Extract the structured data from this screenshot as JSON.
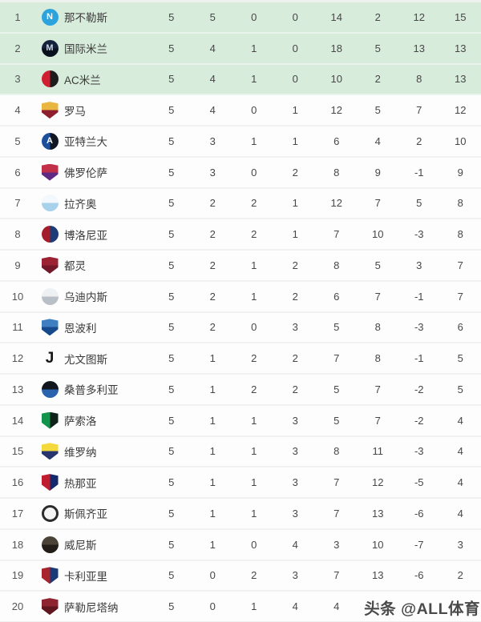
{
  "colors": {
    "cl_zone_bg": "#d8ecdc",
    "row_bg": "#fdfdfd",
    "watermark_text": "#4a4a4a"
  },
  "watermark": {
    "label": "头条 @ALL体育"
  },
  "table": {
    "rows": [
      {
        "rank": "1",
        "team": "那不勒斯",
        "zone": "cl",
        "played": "5",
        "won": "5",
        "drawn": "0",
        "lost": "0",
        "gf": "14",
        "ga": "2",
        "gd": "12",
        "pts": "15",
        "badge": {
          "shape": "circle",
          "split": "solid",
          "colors": [
            "#2ca3dc",
            "#1d71ad"
          ],
          "letter": "N",
          "letterColor": "#ffffff"
        }
      },
      {
        "rank": "2",
        "team": "国际米兰",
        "zone": "cl",
        "played": "5",
        "won": "4",
        "drawn": "1",
        "lost": "0",
        "gf": "18",
        "ga": "5",
        "gd": "13",
        "pts": "13",
        "badge": {
          "shape": "circle",
          "split": "h",
          "colors": [
            "#16223c",
            "#0b101d"
          ],
          "letter": "M",
          "letterColor": "#c9d4e6"
        }
      },
      {
        "rank": "3",
        "team": "AC米兰",
        "zone": "cl",
        "played": "5",
        "won": "4",
        "drawn": "1",
        "lost": "0",
        "gf": "10",
        "ga": "2",
        "gd": "8",
        "pts": "13",
        "badge": {
          "shape": "circle",
          "split": "v",
          "colors": [
            "#cf1f31",
            "#1d1d1d"
          ],
          "letter": "",
          "letterColor": ""
        }
      },
      {
        "rank": "4",
        "team": "罗马",
        "zone": "",
        "played": "5",
        "won": "4",
        "drawn": "0",
        "lost": "1",
        "gf": "12",
        "ga": "5",
        "gd": "7",
        "pts": "12",
        "badge": {
          "shape": "shield",
          "split": "h",
          "colors": [
            "#e9b63f",
            "#8e1f2f"
          ],
          "letter": "",
          "letterColor": ""
        }
      },
      {
        "rank": "5",
        "team": "亚特兰大",
        "zone": "",
        "played": "5",
        "won": "3",
        "drawn": "1",
        "lost": "1",
        "gf": "6",
        "ga": "4",
        "gd": "2",
        "pts": "10",
        "badge": {
          "shape": "circle",
          "split": "v",
          "colors": [
            "#1c4f9c",
            "#111722"
          ],
          "letter": "A",
          "letterColor": "#ffffff"
        }
      },
      {
        "rank": "6",
        "team": "佛罗伦萨",
        "zone": "",
        "played": "5",
        "won": "3",
        "drawn": "0",
        "lost": "2",
        "gf": "8",
        "ga": "9",
        "gd": "-1",
        "pts": "9",
        "badge": {
          "shape": "shield",
          "split": "h",
          "colors": [
            "#c13048",
            "#5f2a84"
          ],
          "letter": "",
          "letterColor": ""
        }
      },
      {
        "rank": "7",
        "team": "拉齐奥",
        "zone": "",
        "played": "5",
        "won": "2",
        "drawn": "2",
        "lost": "1",
        "gf": "12",
        "ga": "7",
        "gd": "5",
        "pts": "8",
        "badge": {
          "shape": "circle",
          "split": "h",
          "colors": [
            "#f2f8fc",
            "#a8d2ec"
          ],
          "letter": "",
          "letterColor": ""
        }
      },
      {
        "rank": "8",
        "team": "博洛尼亚",
        "zone": "",
        "played": "5",
        "won": "2",
        "drawn": "2",
        "lost": "1",
        "gf": "7",
        "ga": "10",
        "gd": "-3",
        "pts": "8",
        "badge": {
          "shape": "circle",
          "split": "v",
          "colors": [
            "#a31e2a",
            "#1d3c77"
          ],
          "letter": "",
          "letterColor": ""
        }
      },
      {
        "rank": "9",
        "team": "都灵",
        "zone": "",
        "played": "5",
        "won": "2",
        "drawn": "1",
        "lost": "2",
        "gf": "8",
        "ga": "5",
        "gd": "3",
        "pts": "7",
        "badge": {
          "shape": "shield",
          "split": "h",
          "colors": [
            "#9c2233",
            "#731829"
          ],
          "letter": "",
          "letterColor": ""
        }
      },
      {
        "rank": "10",
        "team": "乌迪内斯",
        "zone": "",
        "played": "5",
        "won": "2",
        "drawn": "1",
        "lost": "2",
        "gf": "6",
        "ga": "7",
        "gd": "-1",
        "pts": "7",
        "badge": {
          "shape": "circle",
          "split": "h",
          "colors": [
            "#eef0f2",
            "#b9bfc6"
          ],
          "letter": "",
          "letterColor": ""
        }
      },
      {
        "rank": "11",
        "team": "恩波利",
        "zone": "",
        "played": "5",
        "won": "2",
        "drawn": "0",
        "lost": "3",
        "gf": "5",
        "ga": "8",
        "gd": "-3",
        "pts": "6",
        "badge": {
          "shape": "shield",
          "split": "h",
          "colors": [
            "#3f7fc1",
            "#174a8c"
          ],
          "letter": "",
          "letterColor": ""
        }
      },
      {
        "rank": "12",
        "team": "尤文图斯",
        "zone": "",
        "played": "5",
        "won": "1",
        "drawn": "2",
        "lost": "2",
        "gf": "7",
        "ga": "8",
        "gd": "-1",
        "pts": "5",
        "badge": {
          "shape": "plain",
          "split": "none",
          "colors": [
            "#ffffff",
            "#ffffff"
          ],
          "letter": "J",
          "letterColor": "#141414"
        }
      },
      {
        "rank": "13",
        "team": "桑普多利亚",
        "zone": "",
        "played": "5",
        "won": "1",
        "drawn": "2",
        "lost": "2",
        "gf": "5",
        "ga": "7",
        "gd": "-2",
        "pts": "5",
        "badge": {
          "shape": "circle",
          "split": "h",
          "colors": [
            "#12161f",
            "#2b62ae"
          ],
          "letter": "",
          "letterColor": ""
        }
      },
      {
        "rank": "14",
        "team": "萨索洛",
        "zone": "",
        "played": "5",
        "won": "1",
        "drawn": "1",
        "lost": "3",
        "gf": "5",
        "ga": "7",
        "gd": "-2",
        "pts": "4",
        "badge": {
          "shape": "shield",
          "split": "v",
          "colors": [
            "#13934b",
            "#10231a"
          ],
          "letter": "",
          "letterColor": ""
        }
      },
      {
        "rank": "15",
        "team": "维罗纳",
        "zone": "",
        "played": "5",
        "won": "1",
        "drawn": "1",
        "lost": "3",
        "gf": "8",
        "ga": "11",
        "gd": "-3",
        "pts": "4",
        "badge": {
          "shape": "shield",
          "split": "h",
          "colors": [
            "#f3d93c",
            "#27356f"
          ],
          "letter": "",
          "letterColor": ""
        }
      },
      {
        "rank": "16",
        "team": "热那亚",
        "zone": "",
        "played": "5",
        "won": "1",
        "drawn": "1",
        "lost": "3",
        "gf": "7",
        "ga": "12",
        "gd": "-5",
        "pts": "4",
        "badge": {
          "shape": "shield",
          "split": "v",
          "colors": [
            "#c01e2e",
            "#13296b"
          ],
          "letter": "",
          "letterColor": ""
        }
      },
      {
        "rank": "17",
        "team": "斯佩齐亚",
        "zone": "",
        "played": "5",
        "won": "1",
        "drawn": "1",
        "lost": "3",
        "gf": "7",
        "ga": "13",
        "gd": "-6",
        "pts": "4",
        "badge": {
          "shape": "circle",
          "split": "ring",
          "colors": [
            "#f4f4f4",
            "#2b2b2b"
          ],
          "letter": "",
          "letterColor": ""
        }
      },
      {
        "rank": "18",
        "team": "威尼斯",
        "zone": "",
        "played": "5",
        "won": "1",
        "drawn": "0",
        "lost": "4",
        "gf": "3",
        "ga": "10",
        "gd": "-7",
        "pts": "3",
        "badge": {
          "shape": "circle",
          "split": "h",
          "colors": [
            "#4c4338",
            "#221d18"
          ],
          "letter": "",
          "letterColor": ""
        }
      },
      {
        "rank": "19",
        "team": "卡利亚里",
        "zone": "",
        "played": "5",
        "won": "0",
        "drawn": "2",
        "lost": "3",
        "gf": "7",
        "ga": "13",
        "gd": "-6",
        "pts": "2",
        "badge": {
          "shape": "shield",
          "split": "v",
          "colors": [
            "#a8242e",
            "#1b3a78"
          ],
          "letter": "",
          "letterColor": ""
        }
      },
      {
        "rank": "20",
        "team": "萨勒尼塔纳",
        "zone": "",
        "played": "5",
        "won": "0",
        "drawn": "1",
        "lost": "4",
        "gf": "4",
        "ga": "1",
        "gd": "",
        "pts": "",
        "badge": {
          "shape": "shield",
          "split": "h",
          "colors": [
            "#8d2430",
            "#5f161f"
          ],
          "letter": "",
          "letterColor": ""
        }
      }
    ]
  }
}
